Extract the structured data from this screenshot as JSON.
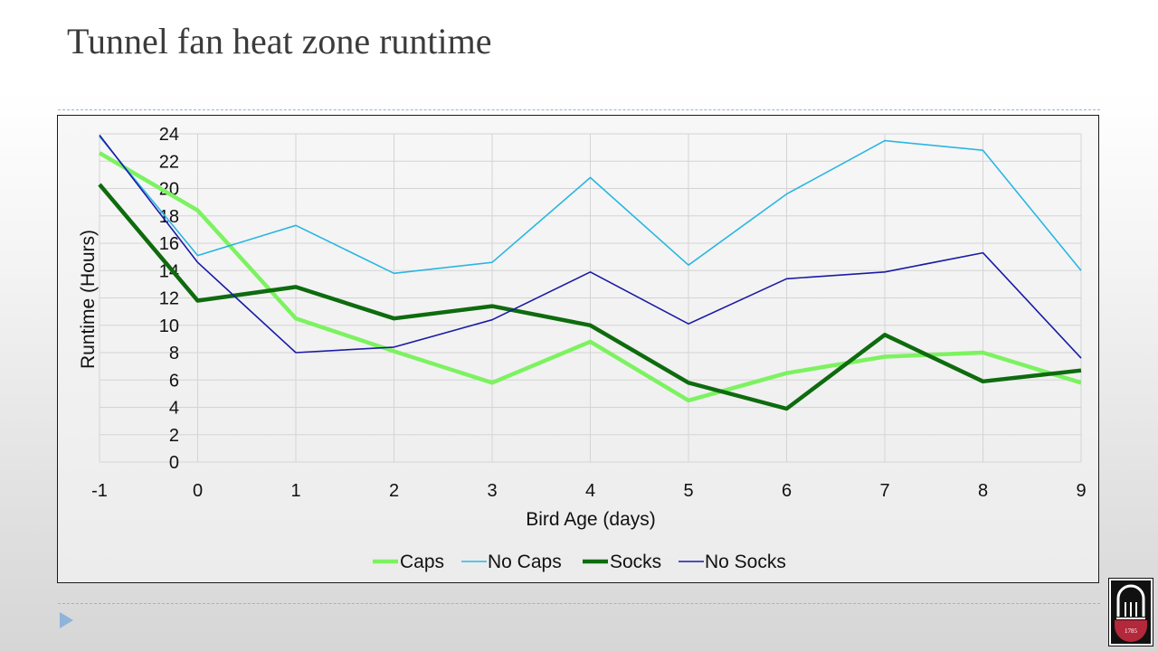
{
  "slide": {
    "title": "Tunnel fan heat zone runtime",
    "logo_year": "1785"
  },
  "colors": {
    "caps": "#7cf260",
    "no_caps": "#29b6e2",
    "socks": "#0e6b0e",
    "no_socks": "#1a1aa6",
    "grid": "#d4d4d4"
  },
  "chart_data": {
    "type": "line",
    "title": "",
    "xlabel": "Bird Age (days)",
    "ylabel": "Runtime (Hours)",
    "x": [
      "-1",
      "0",
      "1",
      "2",
      "3",
      "4",
      "5",
      "6",
      "7",
      "8",
      "9"
    ],
    "ylim": [
      0,
      24
    ],
    "yticks": [
      "0",
      "2",
      "4",
      "6",
      "8",
      "10",
      "12",
      "14",
      "16",
      "18",
      "20",
      "22",
      "24"
    ],
    "grid": true,
    "legend_position": "bottom",
    "series": [
      {
        "name": "Caps",
        "values": [
          22.6,
          18.4,
          10.5,
          8.1,
          5.8,
          8.8,
          4.5,
          6.5,
          7.7,
          8.0,
          5.8
        ]
      },
      {
        "name": "No Caps",
        "values": [
          23.8,
          15.1,
          17.3,
          13.8,
          14.6,
          20.8,
          14.4,
          19.6,
          23.5,
          22.8,
          14.0
        ]
      },
      {
        "name": "Socks",
        "values": [
          20.3,
          11.8,
          12.8,
          10.5,
          11.4,
          10.0,
          5.8,
          3.9,
          9.3,
          5.9,
          6.7
        ]
      },
      {
        "name": "No Socks",
        "values": [
          23.9,
          14.6,
          8.0,
          8.4,
          10.4,
          13.9,
          10.1,
          13.4,
          13.9,
          15.3,
          7.6
        ]
      }
    ]
  }
}
